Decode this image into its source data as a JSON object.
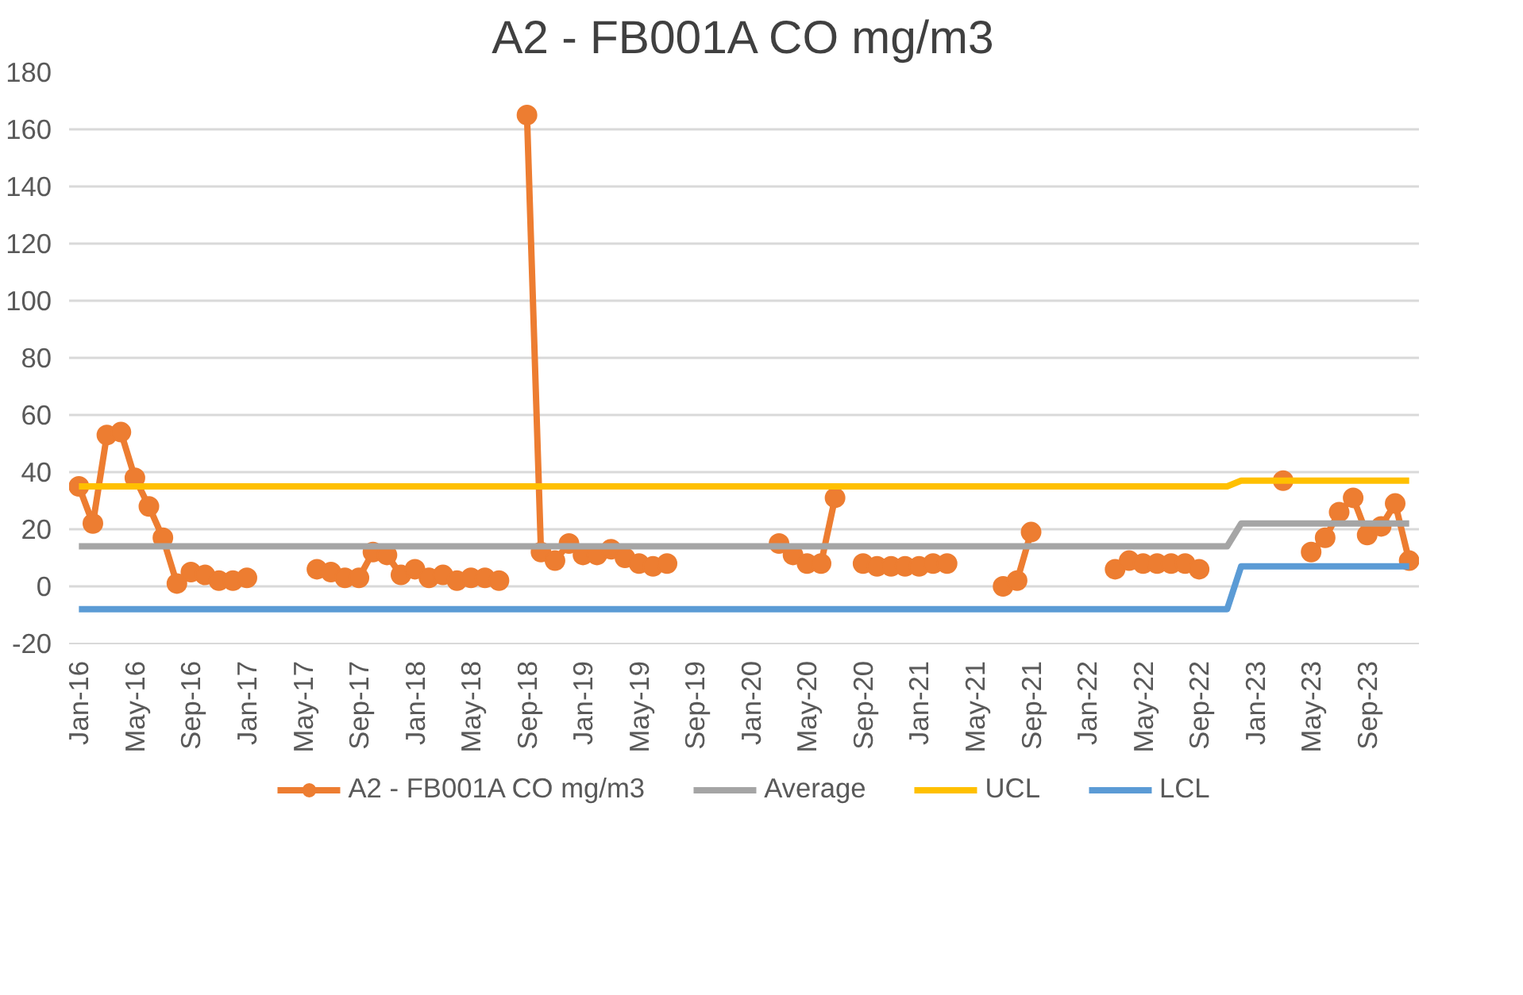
{
  "chart_data": {
    "type": "line",
    "title": "A2 - FB001A CO mg/m3",
    "categories": [
      "Jan-16",
      null,
      null,
      null,
      "May-16",
      null,
      null,
      null,
      "Sep-16",
      null,
      null,
      null,
      "Jan-17",
      null,
      null,
      null,
      "May-17",
      null,
      null,
      null,
      "Sep-17",
      null,
      null,
      null,
      "Jan-18",
      null,
      null,
      null,
      "May-18",
      null,
      null,
      null,
      "Sep-18",
      null,
      null,
      null,
      "Jan-19",
      null,
      null,
      null,
      "May-19",
      null,
      null,
      null,
      "Sep-19",
      null,
      null,
      null,
      "Jan-20",
      null,
      null,
      null,
      "May-20",
      null,
      null,
      null,
      "Sep-20",
      null,
      null,
      null,
      "Jan-21",
      null,
      null,
      null,
      "May-21",
      null,
      null,
      null,
      "Sep-21",
      null,
      null,
      null,
      "Jan-22",
      null,
      null,
      null,
      "May-22",
      null,
      null,
      null,
      "Sep-22",
      null,
      null,
      null,
      "Jan-23",
      null,
      null,
      null,
      "May-23",
      null,
      null,
      null,
      "Sep-23",
      null,
      null,
      null
    ],
    "series": [
      {
        "name": "A2 - FB001A CO mg/m3",
        "color": "#ed7d31",
        "marker": "circle",
        "values": [
          35,
          22,
          53,
          54,
          38,
          28,
          17,
          1,
          5,
          4,
          2,
          2,
          3,
          null,
          null,
          null,
          null,
          6,
          5,
          3,
          3,
          12,
          11,
          4,
          6,
          3,
          4,
          2,
          3,
          3,
          2,
          null,
          165,
          12,
          9,
          15,
          11,
          11,
          13,
          10,
          8,
          7,
          8,
          null,
          null,
          null,
          null,
          null,
          null,
          null,
          15,
          11,
          8,
          8,
          31,
          null,
          8,
          7,
          7,
          7,
          7,
          8,
          8,
          null,
          null,
          null,
          0,
          2,
          19,
          null,
          null,
          null,
          null,
          null,
          6,
          9,
          8,
          8,
          8,
          8,
          6,
          null,
          null,
          null,
          null,
          null,
          37,
          null,
          12,
          17,
          26,
          31,
          18,
          21,
          29,
          9
        ]
      },
      {
        "name": "Average",
        "color": "#a5a5a5",
        "marker": "none",
        "values": [
          14,
          14,
          14,
          14,
          14,
          14,
          14,
          14,
          14,
          14,
          14,
          14,
          14,
          14,
          14,
          14,
          14,
          14,
          14,
          14,
          14,
          14,
          14,
          14,
          14,
          14,
          14,
          14,
          14,
          14,
          14,
          14,
          14,
          14,
          14,
          14,
          14,
          14,
          14,
          14,
          14,
          14,
          14,
          14,
          14,
          14,
          14,
          14,
          14,
          14,
          14,
          14,
          14,
          14,
          14,
          14,
          14,
          14,
          14,
          14,
          14,
          14,
          14,
          14,
          14,
          14,
          14,
          14,
          14,
          14,
          14,
          14,
          14,
          14,
          14,
          14,
          14,
          14,
          14,
          14,
          14,
          14,
          14,
          22,
          22,
          22,
          22,
          22,
          22,
          22,
          22,
          22,
          22,
          22,
          22,
          22
        ]
      },
      {
        "name": "UCL",
        "color": "#ffc000",
        "marker": "none",
        "values": [
          35,
          35,
          35,
          35,
          35,
          35,
          35,
          35,
          35,
          35,
          35,
          35,
          35,
          35,
          35,
          35,
          35,
          35,
          35,
          35,
          35,
          35,
          35,
          35,
          35,
          35,
          35,
          35,
          35,
          35,
          35,
          35,
          35,
          35,
          35,
          35,
          35,
          35,
          35,
          35,
          35,
          35,
          35,
          35,
          35,
          35,
          35,
          35,
          35,
          35,
          35,
          35,
          35,
          35,
          35,
          35,
          35,
          35,
          35,
          35,
          35,
          35,
          35,
          35,
          35,
          35,
          35,
          35,
          35,
          35,
          35,
          35,
          35,
          35,
          35,
          35,
          35,
          35,
          35,
          35,
          35,
          35,
          35,
          37,
          37,
          37,
          37,
          37,
          37,
          37,
          37,
          37,
          37,
          37,
          37,
          37
        ]
      },
      {
        "name": "LCL",
        "color": "#5b9bd5",
        "marker": "none",
        "values": [
          -8,
          -8,
          -8,
          -8,
          -8,
          -8,
          -8,
          -8,
          -8,
          -8,
          -8,
          -8,
          -8,
          -8,
          -8,
          -8,
          -8,
          -8,
          -8,
          -8,
          -8,
          -8,
          -8,
          -8,
          -8,
          -8,
          -8,
          -8,
          -8,
          -8,
          -8,
          -8,
          -8,
          -8,
          -8,
          -8,
          -8,
          -8,
          -8,
          -8,
          -8,
          -8,
          -8,
          -8,
          -8,
          -8,
          -8,
          -8,
          -8,
          -8,
          -8,
          -8,
          -8,
          -8,
          -8,
          -8,
          -8,
          -8,
          -8,
          -8,
          -8,
          -8,
          -8,
          -8,
          -8,
          -8,
          -8,
          -8,
          -8,
          -8,
          -8,
          -8,
          -8,
          -8,
          -8,
          -8,
          -8,
          -8,
          -8,
          -8,
          -8,
          -8,
          -8,
          7,
          7,
          7,
          7,
          7,
          7,
          7,
          7,
          7,
          7,
          7,
          7,
          7
        ]
      }
    ],
    "ylim": [
      -20,
      180
    ],
    "yticks": [
      -20,
      0,
      20,
      40,
      60,
      80,
      100,
      120,
      140,
      160,
      180
    ],
    "grid": "y",
    "legend": "bottom",
    "line_style": "solid"
  }
}
